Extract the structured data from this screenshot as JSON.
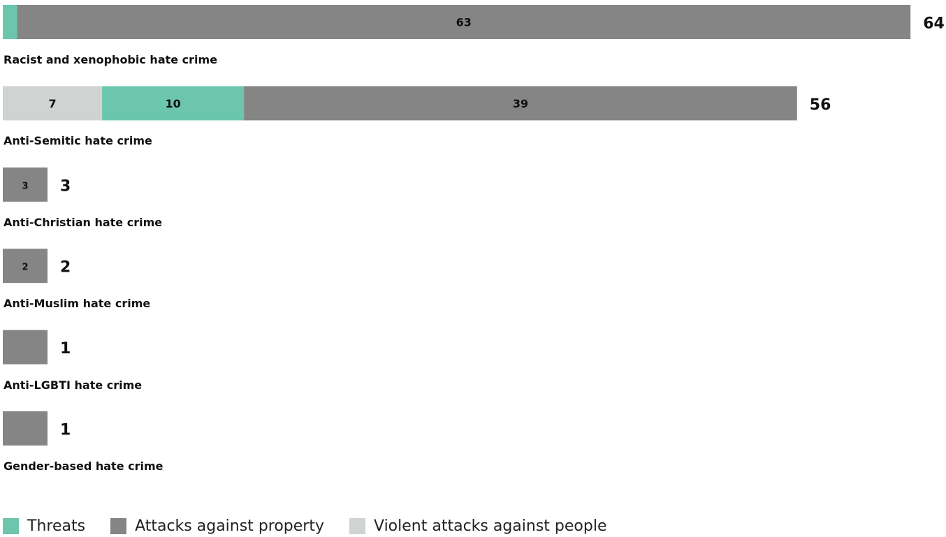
{
  "chart_data": {
    "type": "bar",
    "orientation": "horizontal",
    "stacked": true,
    "title": "",
    "xlabel": "",
    "ylabel": "",
    "xlim": [
      0,
      64
    ],
    "grid": false,
    "legend_position": "bottom-left",
    "categories": [
      "Racist and xenophobic hate crime",
      "Anti-Semitic hate crime",
      "Anti-Christian hate crime",
      "Anti-Muslim hate crime",
      "Anti-LGBTI hate crime",
      "Gender-based hate crime"
    ],
    "totals": [
      64,
      56,
      3,
      2,
      1,
      1
    ],
    "series": [
      {
        "name": "Violent attacks against people",
        "color": "#cfd3d1",
        "values": [
          0,
          7,
          0,
          0,
          0,
          0
        ],
        "labels": [
          "",
          "7",
          "",
          "",
          "",
          ""
        ]
      },
      {
        "name": "Threats",
        "color": "#6cc6ae",
        "values": [
          1,
          10,
          0,
          0,
          0,
          0
        ],
        "labels": [
          "",
          "10",
          "",
          "",
          "",
          ""
        ]
      },
      {
        "name": "Attacks against property",
        "color": "#858585",
        "values": [
          63,
          39,
          3,
          2,
          1,
          1
        ],
        "labels": [
          "63",
          "39",
          "3",
          "2",
          "",
          ""
        ]
      }
    ],
    "legend": [
      {
        "label": "Threats",
        "color": "#6cc6ae"
      },
      {
        "label": "Attacks against property",
        "color": "#858585"
      },
      {
        "label": "Violent attacks against people",
        "color": "#cfd3d1"
      }
    ]
  }
}
